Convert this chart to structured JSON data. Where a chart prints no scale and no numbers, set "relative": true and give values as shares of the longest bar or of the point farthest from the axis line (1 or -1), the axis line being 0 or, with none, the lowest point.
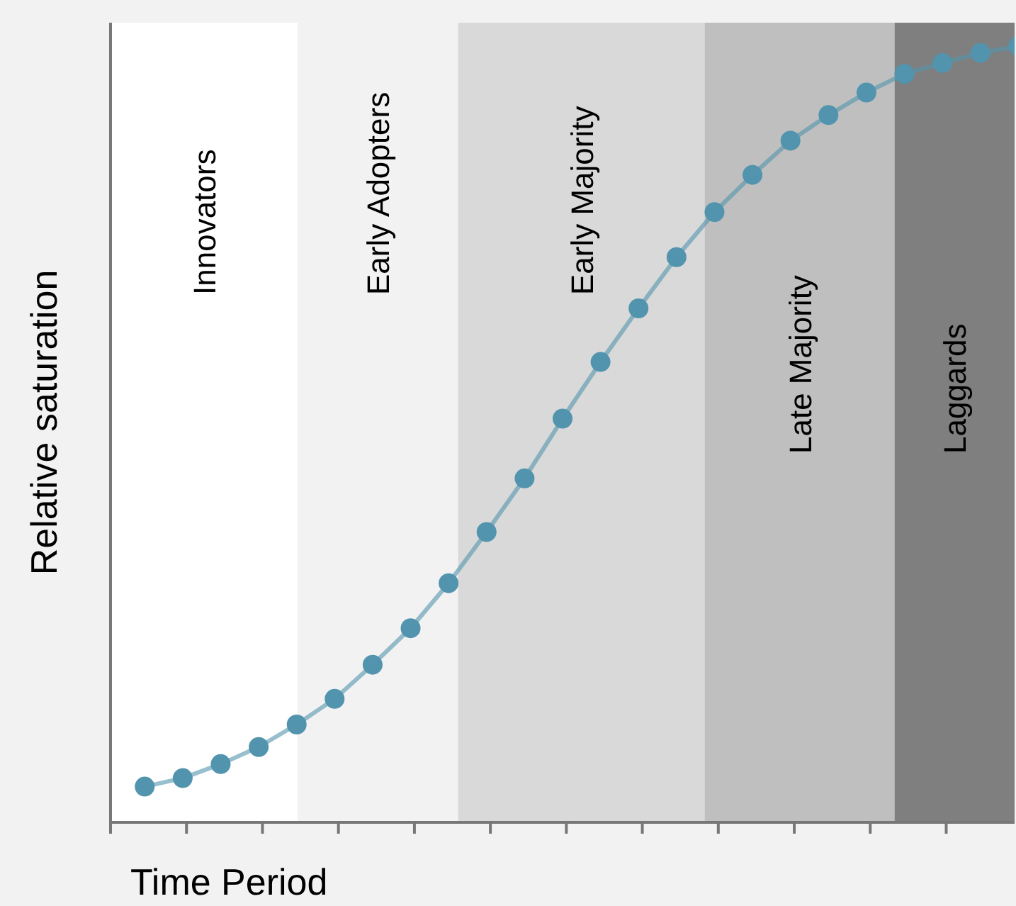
{
  "chart_data": {
    "type": "line",
    "xlabel": "Time Period",
    "ylabel": "Relative saturation",
    "relative": true,
    "grid": false,
    "legend": false,
    "marker": "circle",
    "line_style": "solid",
    "categories": [
      null,
      null,
      null,
      null,
      null,
      null,
      null,
      null,
      null,
      null,
      null,
      null,
      null,
      null,
      null,
      null,
      null,
      null,
      null,
      null,
      null,
      null,
      null,
      null
    ],
    "series": [
      {
        "color": "#5294ae",
        "values": [
          0.046,
          0.057,
          0.075,
          0.097,
          0.126,
          0.159,
          0.203,
          0.25,
          0.308,
          0.374,
          0.443,
          0.52,
          0.593,
          0.662,
          0.728,
          0.786,
          0.834,
          0.878,
          0.911,
          0.94,
          0.964,
          0.978,
          0.991,
          1
        ]
      }
    ],
    "annotations": [
      "Innovators",
      "Early Adopters",
      "Early Majority",
      "Late Majority",
      "Laggards"
    ]
  }
}
